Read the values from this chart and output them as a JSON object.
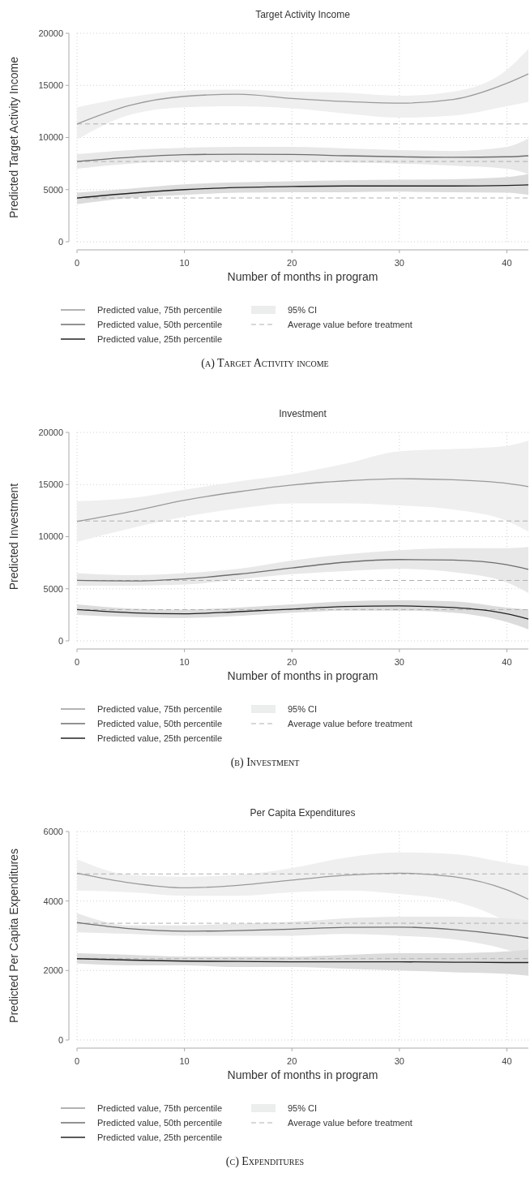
{
  "chart_data": [
    {
      "type": "line",
      "title": "Target Activity Income",
      "xlabel": "Number of months in program",
      "ylabel": "Predicted Target Activity Income",
      "x": [
        0,
        5,
        10,
        15,
        20,
        25,
        30,
        35,
        40,
        42
      ],
      "xlim": [
        0,
        42
      ],
      "xticks": [
        0,
        10,
        20,
        30,
        40
      ],
      "ylim": [
        0,
        20000
      ],
      "yticks": [
        0,
        5000,
        10000,
        15000,
        20000
      ],
      "grid": true,
      "legend": "bottom",
      "line_style": "solid",
      "marker": "none",
      "series": [
        {
          "name": "Predicted value, 75th percentile",
          "color": "#9a9a9a",
          "values": [
            11300,
            13100,
            13950,
            14150,
            13750,
            13450,
            13300,
            13650,
            15200,
            16100
          ],
          "lower": [
            9800,
            12200,
            12900,
            13000,
            12800,
            12300,
            11900,
            12100,
            13000,
            13400
          ],
          "upper": [
            12900,
            13900,
            14500,
            14600,
            14400,
            14300,
            14000,
            14400,
            16500,
            18500
          ]
        },
        {
          "name": "Predicted value, 50th percentile",
          "color": "#6e6e6e",
          "values": [
            7700,
            8100,
            8350,
            8400,
            8380,
            8250,
            8150,
            8100,
            8150,
            8250
          ],
          "lower": [
            7000,
            7500,
            7700,
            7750,
            7700,
            7600,
            7500,
            7300,
            7000,
            6500
          ],
          "upper": [
            8400,
            8800,
            9000,
            9100,
            9100,
            8950,
            8800,
            8700,
            9100,
            9900
          ]
        },
        {
          "name": "Predicted value, 25th percentile",
          "color": "#222222",
          "values": [
            4200,
            4650,
            5000,
            5200,
            5300,
            5350,
            5350,
            5350,
            5400,
            5450
          ],
          "lower": [
            3600,
            4200,
            4500,
            4700,
            4750,
            4750,
            4800,
            4750,
            4700,
            4500
          ],
          "upper": [
            4700,
            5100,
            5500,
            5700,
            5800,
            5900,
            5950,
            6000,
            6200,
            6500
          ]
        }
      ],
      "ref_lines": [
        {
          "axis": "y",
          "value": 11300,
          "label": "Average value before treatment",
          "color": "#b0b0b0",
          "line_style": "dashed"
        },
        {
          "axis": "y",
          "value": 7700,
          "label": null,
          "color": "#b0b0b0",
          "line_style": "dashed"
        },
        {
          "axis": "y",
          "value": 4200,
          "label": null,
          "color": "#b0b0b0",
          "line_style": "dashed"
        }
      ],
      "annotations": [
        "95% CI",
        "(a) Target Activity income"
      ]
    },
    {
      "type": "line",
      "title": "Investment",
      "xlabel": "Number of months in program",
      "ylabel": "Predicted Investment",
      "x": [
        0,
        5,
        10,
        15,
        20,
        25,
        30,
        35,
        40,
        42
      ],
      "xlim": [
        0,
        42
      ],
      "xticks": [
        0,
        10,
        20,
        30,
        40
      ],
      "ylim": [
        0,
        20000
      ],
      "yticks": [
        0,
        5000,
        10000,
        15000,
        20000
      ],
      "grid": true,
      "legend": "bottom",
      "line_style": "solid",
      "marker": "none",
      "series": [
        {
          "name": "Predicted value, 75th percentile",
          "color": "#9a9a9a",
          "values": [
            11450,
            12400,
            13500,
            14300,
            14950,
            15350,
            15550,
            15450,
            15100,
            14800
          ],
          "lower": [
            9500,
            10800,
            11900,
            12700,
            13200,
            13200,
            13000,
            12600,
            11500,
            10500
          ],
          "upper": [
            13400,
            13700,
            14500,
            15300,
            16000,
            17000,
            18200,
            18400,
            18700,
            19200
          ]
        },
        {
          "name": "Predicted value, 50th percentile",
          "color": "#6e6e6e",
          "values": [
            5800,
            5750,
            5950,
            6400,
            7000,
            7550,
            7800,
            7750,
            7300,
            6850
          ],
          "lower": [
            5300,
            5300,
            5400,
            5900,
            6400,
            6700,
            6900,
            6600,
            5600,
            4600
          ],
          "upper": [
            6500,
            6300,
            6500,
            6900,
            7700,
            8300,
            8700,
            8900,
            8900,
            9000
          ]
        },
        {
          "name": "Predicted value, 25th percentile",
          "color": "#222222",
          "values": [
            3000,
            2700,
            2600,
            2800,
            3050,
            3300,
            3350,
            3200,
            2600,
            2100
          ],
          "lower": [
            2500,
            2300,
            2200,
            2400,
            2700,
            2900,
            2900,
            2700,
            1800,
            1100
          ],
          "upper": [
            3500,
            3100,
            3000,
            3200,
            3500,
            3800,
            3900,
            3800,
            3200,
            3000
          ]
        }
      ],
      "ref_lines": [
        {
          "axis": "y",
          "value": 11500,
          "label": "Average value before treatment",
          "color": "#b0b0b0",
          "line_style": "dashed"
        },
        {
          "axis": "y",
          "value": 5800,
          "label": null,
          "color": "#b0b0b0",
          "line_style": "dashed"
        },
        {
          "axis": "y",
          "value": 3000,
          "label": null,
          "color": "#b0b0b0",
          "line_style": "dashed"
        }
      ],
      "annotations": [
        "95% CI",
        "(b) Investment"
      ]
    },
    {
      "type": "line",
      "title": "Per Capita Expenditures",
      "xlabel": "Number of months in program",
      "ylabel": "Predicted Per Capita Expenditures",
      "x": [
        0,
        5,
        10,
        15,
        20,
        25,
        30,
        35,
        40,
        42
      ],
      "xlim": [
        0,
        42
      ],
      "xticks": [
        0,
        10,
        20,
        30,
        40
      ],
      "ylim": [
        0,
        6000
      ],
      "yticks": [
        0,
        2000,
        4000,
        6000
      ],
      "grid": true,
      "legend": "bottom",
      "line_style": "solid",
      "marker": "none",
      "series": [
        {
          "name": "Predicted value, 75th percentile",
          "color": "#9a9a9a",
          "values": [
            4800,
            4520,
            4380,
            4450,
            4600,
            4740,
            4800,
            4700,
            4320,
            4050
          ],
          "lower": [
            4300,
            4250,
            4150,
            4150,
            4250,
            4300,
            4200,
            4000,
            3400,
            3000
          ],
          "upper": [
            5200,
            4750,
            4700,
            4750,
            4950,
            5250,
            5400,
            5350,
            5100,
            5000
          ]
        },
        {
          "name": "Predicted value, 50th percentile",
          "color": "#6e6e6e",
          "values": [
            3380,
            3200,
            3130,
            3150,
            3190,
            3240,
            3250,
            3180,
            3020,
            2930
          ],
          "lower": [
            3100,
            3050,
            3000,
            3000,
            3000,
            3050,
            3000,
            2900,
            2600,
            2400
          ],
          "upper": [
            3650,
            3300,
            3300,
            3350,
            3400,
            3500,
            3550,
            3550,
            3500,
            3450
          ]
        },
        {
          "name": "Predicted value, 25th percentile",
          "color": "#222222",
          "values": [
            2340,
            2300,
            2270,
            2260,
            2250,
            2250,
            2250,
            2240,
            2230,
            2230
          ],
          "lower": [
            2200,
            2150,
            2150,
            2100,
            2100,
            2050,
            2000,
            1950,
            1900,
            1850
          ],
          "upper": [
            2500,
            2450,
            2400,
            2400,
            2400,
            2450,
            2500,
            2500,
            2550,
            2600
          ]
        }
      ],
      "ref_lines": [
        {
          "axis": "y",
          "value": 4780,
          "label": "Average value before treatment",
          "color": "#b0b0b0",
          "line_style": "dashed"
        },
        {
          "axis": "y",
          "value": 3360,
          "label": null,
          "color": "#b0b0b0",
          "line_style": "dashed"
        },
        {
          "axis": "y",
          "value": 2340,
          "label": null,
          "color": "#b0b0b0",
          "line_style": "dashed"
        }
      ],
      "annotations": [
        "95% CI",
        "(c) Expenditures"
      ]
    }
  ]
}
